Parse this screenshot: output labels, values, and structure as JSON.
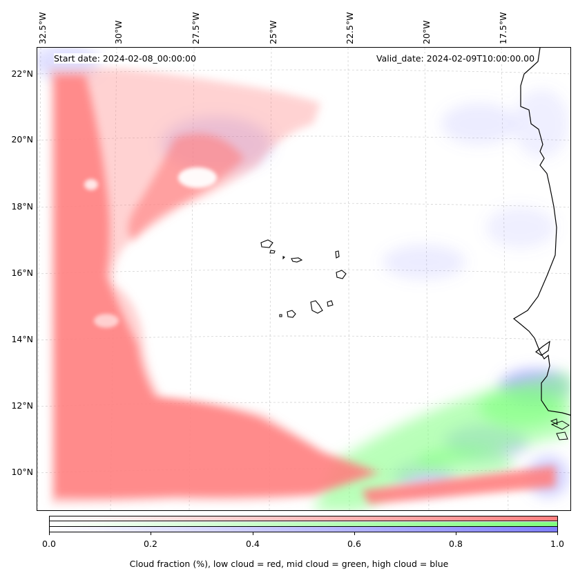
{
  "map": {
    "start_date": "Start date: 2024-02-08_00:00:00",
    "valid_date": "Valid_date: 2024-02-09T10:00:00.00",
    "lon_labels": [
      "32.5°W",
      "30°W",
      "27.5°W",
      "25°W",
      "22.5°W",
      "20°W",
      "17.5°W"
    ],
    "lat_labels": [
      "22°N",
      "20°N",
      "18°N",
      "16°N",
      "14°N",
      "12°N",
      "10°N"
    ],
    "layers": {
      "low_cloud_color": "#ff7f7f",
      "mid_cloud_color": "#7fff7f",
      "high_cloud_color": "#7f7fff"
    },
    "islands": "Cape Verde",
    "coastline": "West Africa (Mauritania, Senegal, Gambia, Guinea-Bissau)"
  },
  "colorbar": {
    "ticks": [
      "0.0",
      "0.2",
      "0.4",
      "0.6",
      "0.8",
      "1.0"
    ],
    "range": [
      0.0,
      1.0
    ],
    "caption": "Cloud fraction (%), low cloud = red, mid cloud = green, high cloud = blue"
  }
}
